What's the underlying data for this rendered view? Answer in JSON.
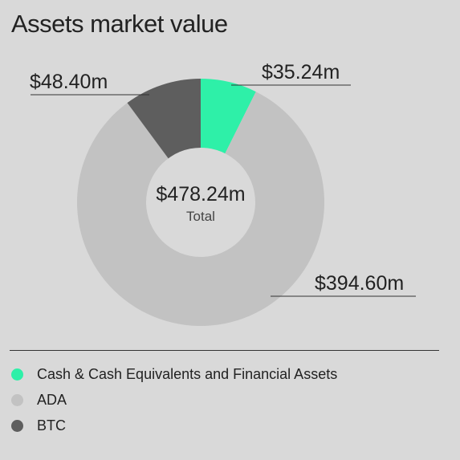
{
  "title": "Assets market value",
  "chart_data": {
    "type": "pie",
    "style": "donut",
    "center_value": "$478.24m",
    "center_label": "Total",
    "slices": [
      {
        "name": "Cash & Cash Equivalents and Financial Assets",
        "label": "$35.24m",
        "value": 35.24,
        "color": "#2ef0a8"
      },
      {
        "name": "ADA",
        "label": "$394.60m",
        "value": 394.6,
        "color": "#c2c2c2"
      },
      {
        "name": "BTC",
        "label": "$48.40m",
        "value": 48.4,
        "color": "#5e5e5e"
      }
    ]
  },
  "legend": [
    {
      "label": "Cash & Cash Equivalents and Financial Assets",
      "color": "#2ef0a8"
    },
    {
      "label": "ADA",
      "color": "#c2c2c2"
    },
    {
      "label": "BTC",
      "color": "#5e5e5e"
    }
  ]
}
